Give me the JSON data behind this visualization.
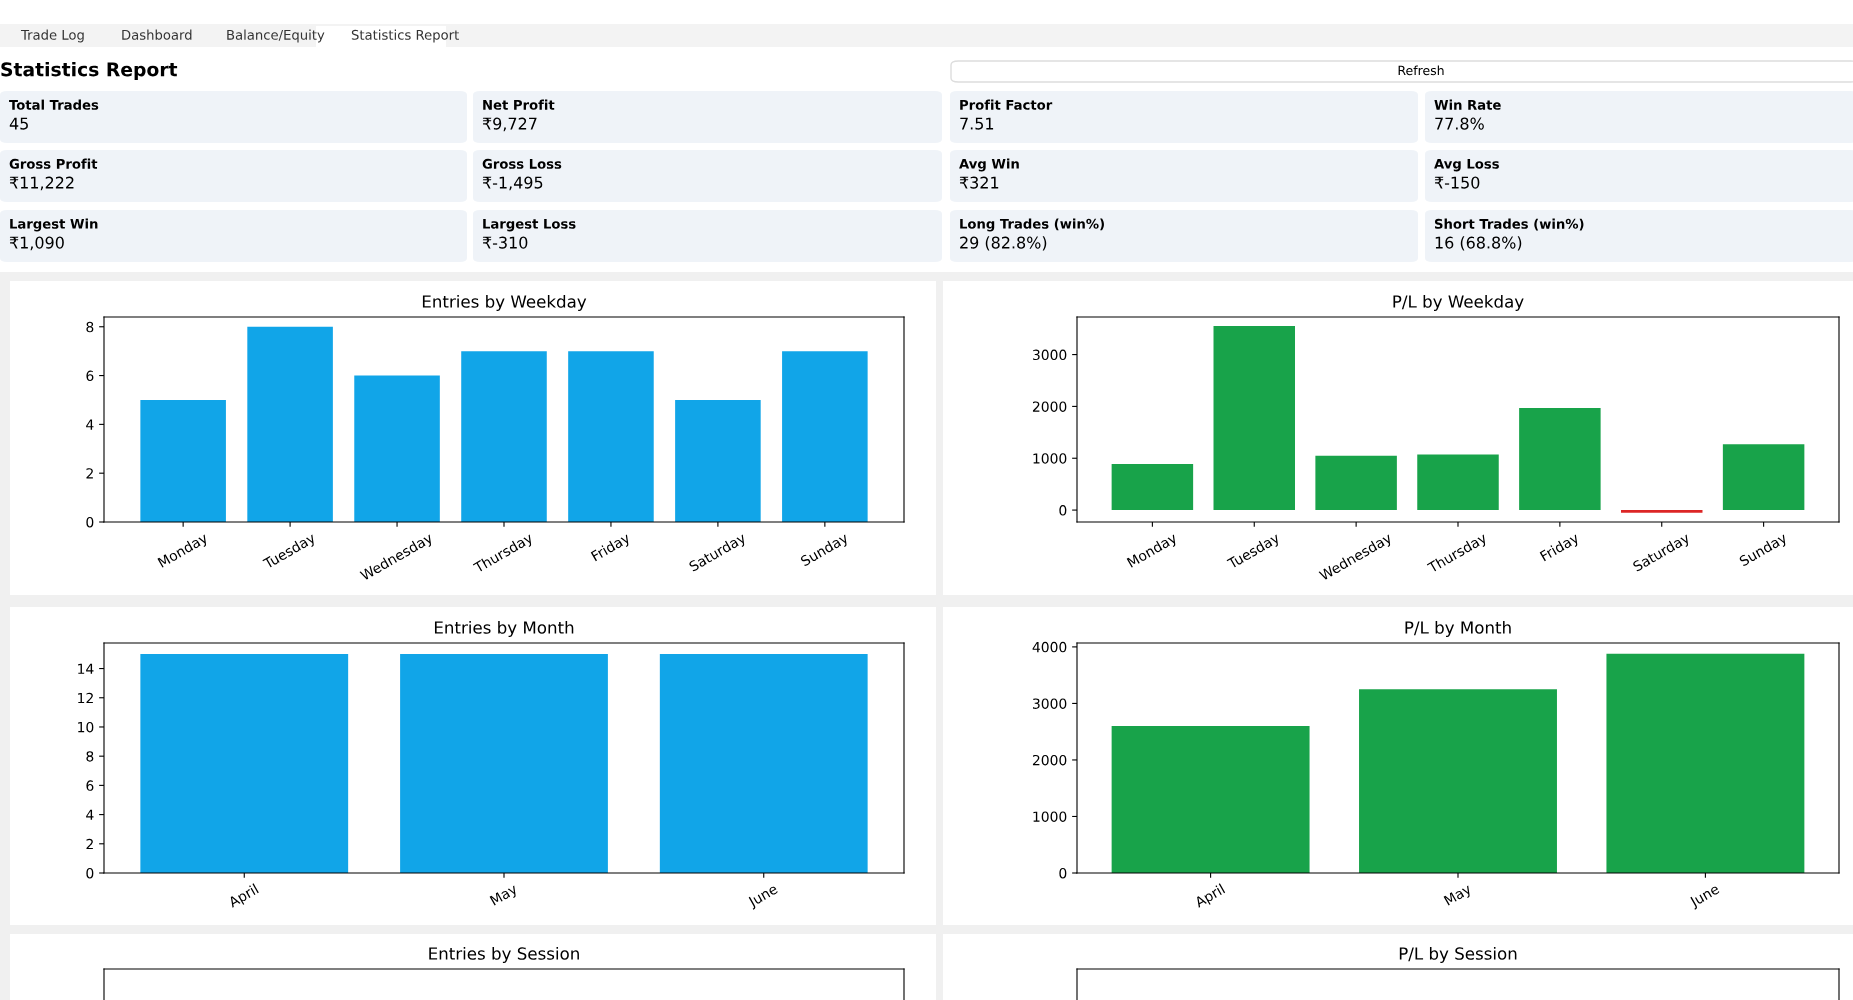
{
  "chart_data": [
    {
      "type": "other",
      "title": "Statistics Report",
      "annotations": [
        "Trade Log",
        "Dashboard",
        "Balance/Equity",
        "Statistics Report",
        "Refresh",
        "Total Trades",
        "45",
        "Net Profit",
        "₹9,727",
        "Profit Factor",
        "7.51",
        "Win Rate",
        "77.8%",
        "Gross Profit",
        "₹11,222",
        "Gross Loss",
        "₹-1,495",
        "Avg Win",
        "₹321",
        "Avg Loss",
        "₹-150",
        "Largest Win",
        "₹1,090",
        "Largest Loss",
        "₹-310",
        "Long Trades (win%)",
        "29 (82.8%)",
        "Short Trades (win%)",
        "16 (68.8%)"
      ]
    },
    {
      "type": "bar",
      "title": "Entries by Weekday",
      "categories": [
        "Monday",
        "Tuesday",
        "Wednesday",
        "Thursday",
        "Friday",
        "Saturday",
        "Sunday"
      ],
      "values": [
        5,
        8,
        6,
        7,
        7,
        5,
        7
      ],
      "color": "#11a5e8",
      "ylim": [
        0,
        8.4
      ],
      "yticks": [
        0,
        2,
        4,
        6,
        8
      ]
    },
    {
      "type": "bar",
      "title": "P/L by Weekday",
      "categories": [
        "Monday",
        "Tuesday",
        "Wednesday",
        "Thursday",
        "Friday",
        "Saturday",
        "Sunday"
      ],
      "values": [
        890,
        3550,
        1050,
        1070,
        1970,
        -50,
        1270
      ],
      "colors": [
        "#18a34a",
        "#18a34a",
        "#18a34a",
        "#18a34a",
        "#18a34a",
        "#dc2626",
        "#18a34a"
      ],
      "ylim": [
        -230,
        3725
      ],
      "yticks": [
        0,
        1000,
        2000,
        3000
      ]
    },
    {
      "type": "bar",
      "title": "Entries by Month",
      "categories": [
        "April",
        "May",
        "June"
      ],
      "values": [
        15,
        15,
        15
      ],
      "color": "#11a5e8",
      "ylim": [
        0,
        15.75
      ],
      "yticks": [
        0,
        2,
        4,
        6,
        8,
        10,
        12,
        14
      ]
    },
    {
      "type": "bar",
      "title": "P/L by Month",
      "categories": [
        "April",
        "May",
        "June"
      ],
      "values": [
        2600,
        3250,
        3880
      ],
      "color": "#18a34a",
      "ylim": [
        0,
        4069
      ],
      "yticks": [
        0,
        1000,
        2000,
        3000,
        4000
      ]
    },
    {
      "type": "other",
      "title": "Entries by Session"
    },
    {
      "type": "other",
      "title": "P/L by Session"
    }
  ]
}
